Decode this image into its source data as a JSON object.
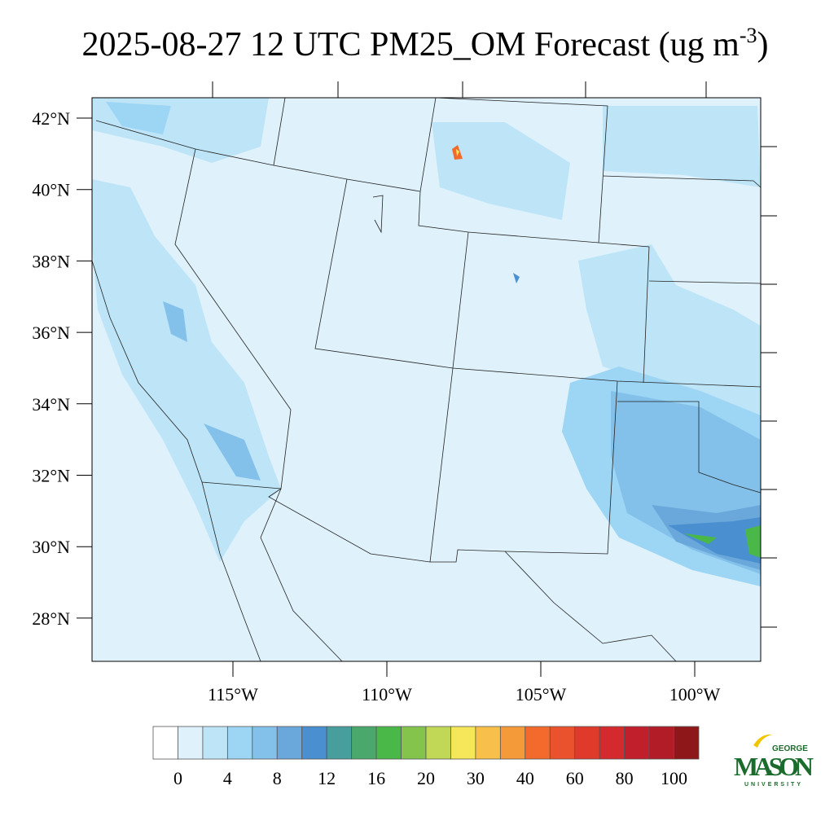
{
  "title": {
    "main": "2025-08-27 12 UTC PM25_OM Forecast (ug m",
    "superscript": "-3",
    "close": ")"
  },
  "map": {
    "lat_labels": [
      "42°N",
      "40°N",
      "38°N",
      "36°N",
      "34°N",
      "32°N",
      "30°N",
      "28°N"
    ],
    "lon_labels": [
      "115°W",
      "110°W",
      "105°W",
      "100°W"
    ]
  },
  "colorbar": {
    "colors": [
      "#ffffff",
      "#dff1fb",
      "#bde5f7",
      "#9dd5f5",
      "#84c1ea",
      "#6aa8dc",
      "#4a8fcf",
      "#479e9d",
      "#4aa86c",
      "#4ab848",
      "#84c44c",
      "#c1d856",
      "#f5e65a",
      "#f8c04a",
      "#f59a38",
      "#f36a2c",
      "#e9522c",
      "#e03a2a",
      "#d42a2e",
      "#c21f2c",
      "#b21c26",
      "#8e1719"
    ],
    "labels": [
      0,
      4,
      8,
      12,
      16,
      20,
      30,
      40,
      60,
      80,
      100
    ]
  },
  "logo": {
    "top": "GEORGE",
    "main": "MASON",
    "bottom": "UNIVERSITY"
  }
}
